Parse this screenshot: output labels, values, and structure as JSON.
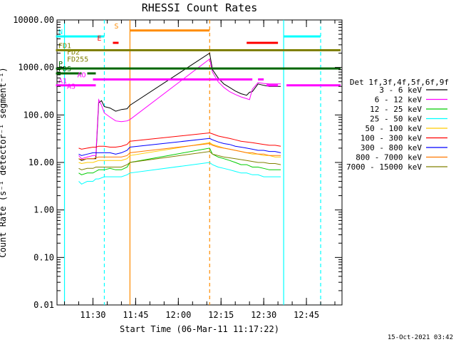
{
  "chart_data": {
    "type": "line",
    "title": "RHESSI Count Rates",
    "xlabel": "Start Time (06-Mar-11 11:17:22)",
    "ylabel": "Count Rate (s⁻¹ detector⁻¹ segment⁻¹)",
    "yscale": "log",
    "ylim": [
      0.01,
      10000
    ],
    "xlim": [
      "11:17:22",
      "12:57:30"
    ],
    "y_ticks": [
      "10000.00",
      "1000.00",
      "100.00",
      "10.00",
      "1.00",
      "0.10",
      "0.01"
    ],
    "x_ticks": [
      "11:30",
      "11:45",
      "12:00",
      "12:15",
      "12:30",
      "12:45"
    ],
    "legend_title": "Det 1f,3f,4f,5f,6f,9f",
    "legend_placement": "right",
    "series": [
      {
        "name": "3 - 6 keV",
        "color": "#000000",
        "data": [
          [
            "11:25",
            12
          ],
          [
            "11:26",
            11
          ],
          [
            "11:28",
            12
          ],
          [
            "11:30",
            12
          ],
          [
            "11:31",
            12
          ],
          [
            "11:32",
            180
          ],
          [
            "11:33",
            200
          ],
          [
            "11:34",
            150
          ],
          [
            "11:36",
            140
          ],
          [
            "11:38",
            120
          ],
          [
            "11:40",
            130
          ],
          [
            "11:42",
            135
          ],
          [
            "11:43",
            160
          ],
          [
            "12:11",
            2000
          ],
          [
            "12:12",
            900
          ],
          [
            "12:14",
            600
          ],
          [
            "12:16",
            450
          ],
          [
            "12:18",
            380
          ],
          [
            "12:20",
            320
          ],
          [
            "12:22",
            280
          ],
          [
            "12:24",
            260
          ],
          [
            "12:25",
            300
          ],
          [
            "12:26",
            310
          ],
          [
            "12:28",
            450
          ],
          [
            "12:30",
            420
          ],
          [
            "12:32",
            400
          ],
          [
            "12:36",
            400
          ]
        ]
      },
      {
        "name": "6 - 12 keV",
        "color": "#ff00ff",
        "data": [
          [
            "11:25",
            14
          ],
          [
            "11:26",
            12
          ],
          [
            "11:28",
            13
          ],
          [
            "11:30",
            14
          ],
          [
            "11:31",
            14
          ],
          [
            "11:32",
            210
          ],
          [
            "11:33",
            160
          ],
          [
            "11:34",
            110
          ],
          [
            "11:36",
            90
          ],
          [
            "11:38",
            75
          ],
          [
            "11:40",
            72
          ],
          [
            "11:42",
            75
          ],
          [
            "11:43",
            80
          ],
          [
            "12:11",
            1500
          ],
          [
            "12:12",
            800
          ],
          [
            "12:14",
            500
          ],
          [
            "12:16",
            380
          ],
          [
            "12:18",
            310
          ],
          [
            "12:20",
            270
          ],
          [
            "12:22",
            240
          ],
          [
            "12:24",
            220
          ],
          [
            "12:25",
            210
          ],
          [
            "12:26",
            350
          ],
          [
            "12:28",
            480
          ],
          [
            "12:30",
            460
          ],
          [
            "12:32",
            450
          ],
          [
            "12:36",
            450
          ]
        ]
      },
      {
        "name": "12 - 25 keV",
        "color": "#00cc00",
        "data": [
          [
            "11:25",
            6
          ],
          [
            "11:26",
            5.5
          ],
          [
            "11:28",
            6
          ],
          [
            "11:30",
            6
          ],
          [
            "11:31",
            6.5
          ],
          [
            "11:32",
            7
          ],
          [
            "11:34",
            7
          ],
          [
            "11:36",
            7.5
          ],
          [
            "11:38",
            7
          ],
          [
            "11:40",
            7
          ],
          [
            "11:42",
            8
          ],
          [
            "11:43",
            10
          ],
          [
            "12:11",
            20
          ],
          [
            "12:12",
            15
          ],
          [
            "12:14",
            13
          ],
          [
            "12:16",
            12
          ],
          [
            "12:18",
            11
          ],
          [
            "12:20",
            10
          ],
          [
            "12:22",
            9
          ],
          [
            "12:24",
            9
          ],
          [
            "12:26",
            8
          ],
          [
            "12:28",
            8
          ],
          [
            "12:30",
            7.5
          ],
          [
            "12:32",
            7
          ],
          [
            "12:34",
            7
          ],
          [
            "12:36",
            7
          ]
        ]
      },
      {
        "name": "25 - 50 keV",
        "color": "#00ffff",
        "data": [
          [
            "11:25",
            4
          ],
          [
            "11:26",
            3.5
          ],
          [
            "11:28",
            4
          ],
          [
            "11:30",
            4
          ],
          [
            "11:31",
            4.5
          ],
          [
            "11:32",
            4.5
          ],
          [
            "11:34",
            5
          ],
          [
            "11:36",
            5
          ],
          [
            "11:38",
            5
          ],
          [
            "11:40",
            5
          ],
          [
            "11:42",
            5.5
          ],
          [
            "11:43",
            6
          ],
          [
            "12:11",
            10
          ],
          [
            "12:12",
            9
          ],
          [
            "12:14",
            8
          ],
          [
            "12:16",
            7.5
          ],
          [
            "12:18",
            7
          ],
          [
            "12:20",
            6.5
          ],
          [
            "12:22",
            6
          ],
          [
            "12:24",
            6
          ],
          [
            "12:26",
            5.5
          ],
          [
            "12:28",
            5.5
          ],
          [
            "12:30",
            5
          ],
          [
            "12:32",
            5
          ],
          [
            "12:34",
            5
          ],
          [
            "12:36",
            5
          ]
        ]
      },
      {
        "name": "50 - 100 keV",
        "color": "#ffcc00",
        "data": [
          [
            "11:25",
            10
          ],
          [
            "11:26",
            9.5
          ],
          [
            "11:28",
            10
          ],
          [
            "11:30",
            10
          ],
          [
            "11:31",
            10.5
          ],
          [
            "11:32",
            11
          ],
          [
            "11:34",
            11
          ],
          [
            "11:36",
            11
          ],
          [
            "11:38",
            11
          ],
          [
            "11:40",
            11
          ],
          [
            "11:42",
            12
          ],
          [
            "11:43",
            14
          ],
          [
            "12:11",
            26
          ],
          [
            "12:12",
            24
          ],
          [
            "12:14",
            22
          ],
          [
            "12:16",
            20
          ],
          [
            "12:18",
            19
          ],
          [
            "12:20",
            18
          ],
          [
            "12:22",
            17
          ],
          [
            "12:24",
            16
          ],
          [
            "12:26",
            15
          ],
          [
            "12:28",
            15
          ],
          [
            "12:30",
            14
          ],
          [
            "12:32",
            14
          ],
          [
            "12:34",
            13
          ],
          [
            "12:36",
            13
          ]
        ]
      },
      {
        "name": "100 - 300 keV",
        "color": "#ff0000",
        "data": [
          [
            "11:25",
            20
          ],
          [
            "11:26",
            19
          ],
          [
            "11:28",
            20
          ],
          [
            "11:30",
            21
          ],
          [
            "11:31",
            21
          ],
          [
            "11:32",
            22
          ],
          [
            "11:34",
            22
          ],
          [
            "11:36",
            21
          ],
          [
            "11:38",
            21
          ],
          [
            "11:40",
            22
          ],
          [
            "11:42",
            24
          ],
          [
            "11:43",
            28
          ],
          [
            "12:11",
            42
          ],
          [
            "12:12",
            40
          ],
          [
            "12:14",
            36
          ],
          [
            "12:16",
            34
          ],
          [
            "12:18",
            32
          ],
          [
            "12:20",
            30
          ],
          [
            "12:22",
            28
          ],
          [
            "12:24",
            27
          ],
          [
            "12:26",
            26
          ],
          [
            "12:28",
            25
          ],
          [
            "12:30",
            24
          ],
          [
            "12:32",
            23
          ],
          [
            "12:34",
            23
          ],
          [
            "12:36",
            22
          ]
        ]
      },
      {
        "name": "300 - 800 keV",
        "color": "#0000ff",
        "data": [
          [
            "11:25",
            15
          ],
          [
            "11:26",
            14
          ],
          [
            "11:28",
            15
          ],
          [
            "11:30",
            16
          ],
          [
            "11:31",
            16
          ],
          [
            "11:32",
            16
          ],
          [
            "11:34",
            16
          ],
          [
            "11:36",
            16
          ],
          [
            "11:38",
            15
          ],
          [
            "11:40",
            16
          ],
          [
            "11:42",
            18
          ],
          [
            "11:43",
            21
          ],
          [
            "12:11",
            32
          ],
          [
            "12:12",
            30
          ],
          [
            "12:14",
            27
          ],
          [
            "12:16",
            25
          ],
          [
            "12:18",
            24
          ],
          [
            "12:20",
            22
          ],
          [
            "12:22",
            21
          ],
          [
            "12:24",
            20
          ],
          [
            "12:26",
            19
          ],
          [
            "12:28",
            18
          ],
          [
            "12:30",
            18
          ],
          [
            "12:32",
            17
          ],
          [
            "12:34",
            17
          ],
          [
            "12:36",
            16
          ]
        ]
      },
      {
        "name": "800 - 7000 keV",
        "color": "#ff7700",
        "data": [
          [
            "11:25",
            12
          ],
          [
            "11:26",
            11.5
          ],
          [
            "11:28",
            12
          ],
          [
            "11:30",
            12
          ],
          [
            "11:31",
            12.5
          ],
          [
            "11:32",
            13
          ],
          [
            "11:34",
            13
          ],
          [
            "11:36",
            13
          ],
          [
            "11:38",
            13
          ],
          [
            "11:40",
            13
          ],
          [
            "11:42",
            14
          ],
          [
            "11:43",
            16
          ],
          [
            "12:11",
            25
          ],
          [
            "12:12",
            23
          ],
          [
            "12:14",
            21
          ],
          [
            "12:16",
            20
          ],
          [
            "12:18",
            19
          ],
          [
            "12:20",
            18
          ],
          [
            "12:22",
            17
          ],
          [
            "12:24",
            16
          ],
          [
            "12:26",
            16
          ],
          [
            "12:28",
            15
          ],
          [
            "12:30",
            15
          ],
          [
            "12:32",
            14
          ],
          [
            "12:34",
            14
          ],
          [
            "12:36",
            14
          ]
        ]
      },
      {
        "name": "7000 - 15000 keV",
        "color": "#808000",
        "data": [
          [
            "11:25",
            7.5
          ],
          [
            "11:26",
            7
          ],
          [
            "11:28",
            7.5
          ],
          [
            "11:30",
            7.5
          ],
          [
            "11:31",
            8
          ],
          [
            "11:32",
            8
          ],
          [
            "11:34",
            8
          ],
          [
            "11:36",
            8
          ],
          [
            "11:38",
            8
          ],
          [
            "11:40",
            8
          ],
          [
            "11:42",
            9
          ],
          [
            "11:43",
            10
          ],
          [
            "12:11",
            17
          ],
          [
            "12:12",
            15
          ],
          [
            "12:14",
            14
          ],
          [
            "12:16",
            13
          ],
          [
            "12:18",
            12.5
          ],
          [
            "12:20",
            12
          ],
          [
            "12:22",
            11.5
          ],
          [
            "12:24",
            11
          ],
          [
            "12:26",
            10.5
          ],
          [
            "12:28",
            10
          ],
          [
            "12:30",
            10
          ],
          [
            "12:32",
            9.5
          ],
          [
            "12:34",
            9.5
          ],
          [
            "12:36",
            9
          ]
        ]
      }
    ],
    "vertical_markers": [
      {
        "t": "11:20",
        "color": "#00ffff",
        "style": "solid"
      },
      {
        "t": "11:34",
        "color": "#00ffff",
        "style": "dashed"
      },
      {
        "t": "11:43",
        "color": "#ff8c00",
        "style": "solid"
      },
      {
        "t": "12:11",
        "color": "#ff8c00",
        "style": "dashed"
      },
      {
        "t": "12:37",
        "color": "#00ffff",
        "style": "solid"
      },
      {
        "t": "12:50",
        "color": "#00ffff",
        "style": "dashed"
      }
    ],
    "flag_bars": [
      {
        "label": "N",
        "color": "#00ffff",
        "segments": [
          [
            "11:17",
            "11:34"
          ],
          [
            "12:37",
            "12:50"
          ]
        ],
        "y": 4500
      },
      {
        "label": "S",
        "color": "#ff8c00",
        "segments": [
          [
            "11:43",
            "12:11"
          ]
        ],
        "y": 6000
      },
      {
        "label": "E",
        "color": "#ff0000",
        "segments": [
          [
            "11:37",
            "11:39"
          ],
          [
            "12:24",
            "12:35"
          ]
        ],
        "y": 3300
      },
      {
        "label": "FD1",
        "color": "#808000",
        "segments": [
          [
            "11:17",
            "12:57"
          ]
        ],
        "y": 2300
      },
      {
        "label": "FD2",
        "color": "#808000",
        "segments": [],
        "y": 1700
      },
      {
        "label": "FD255",
        "color": "#808000",
        "segments": [],
        "y": 1200
      },
      {
        "label": "P",
        "color": "#006600",
        "segments": [
          [
            "11:17",
            "12:57"
          ]
        ],
        "y": 950
      },
      {
        "label": "PDS",
        "color": "#006600",
        "segments": [
          [
            "11:17",
            "11:26"
          ],
          [
            "11:28",
            "11:31"
          ]
        ],
        "y": 750
      },
      {
        "label": "AO",
        "color": "#ff00ff",
        "segments": [
          [
            "11:30",
            "12:26"
          ],
          [
            "12:28",
            "12:30"
          ]
        ],
        "y": 560
      },
      {
        "label": "A1",
        "color": "#ff00ff",
        "segments": [
          [
            "11:17",
            "11:31"
          ],
          [
            "12:31",
            "12:35"
          ],
          [
            "12:38",
            "12:57"
          ]
        ],
        "y": 420
      },
      {
        "label": "A3",
        "color": "#ff00ff",
        "segments": [],
        "y": 320
      }
    ]
  },
  "footer_timestamp": "15-Oct-2021 03:42"
}
